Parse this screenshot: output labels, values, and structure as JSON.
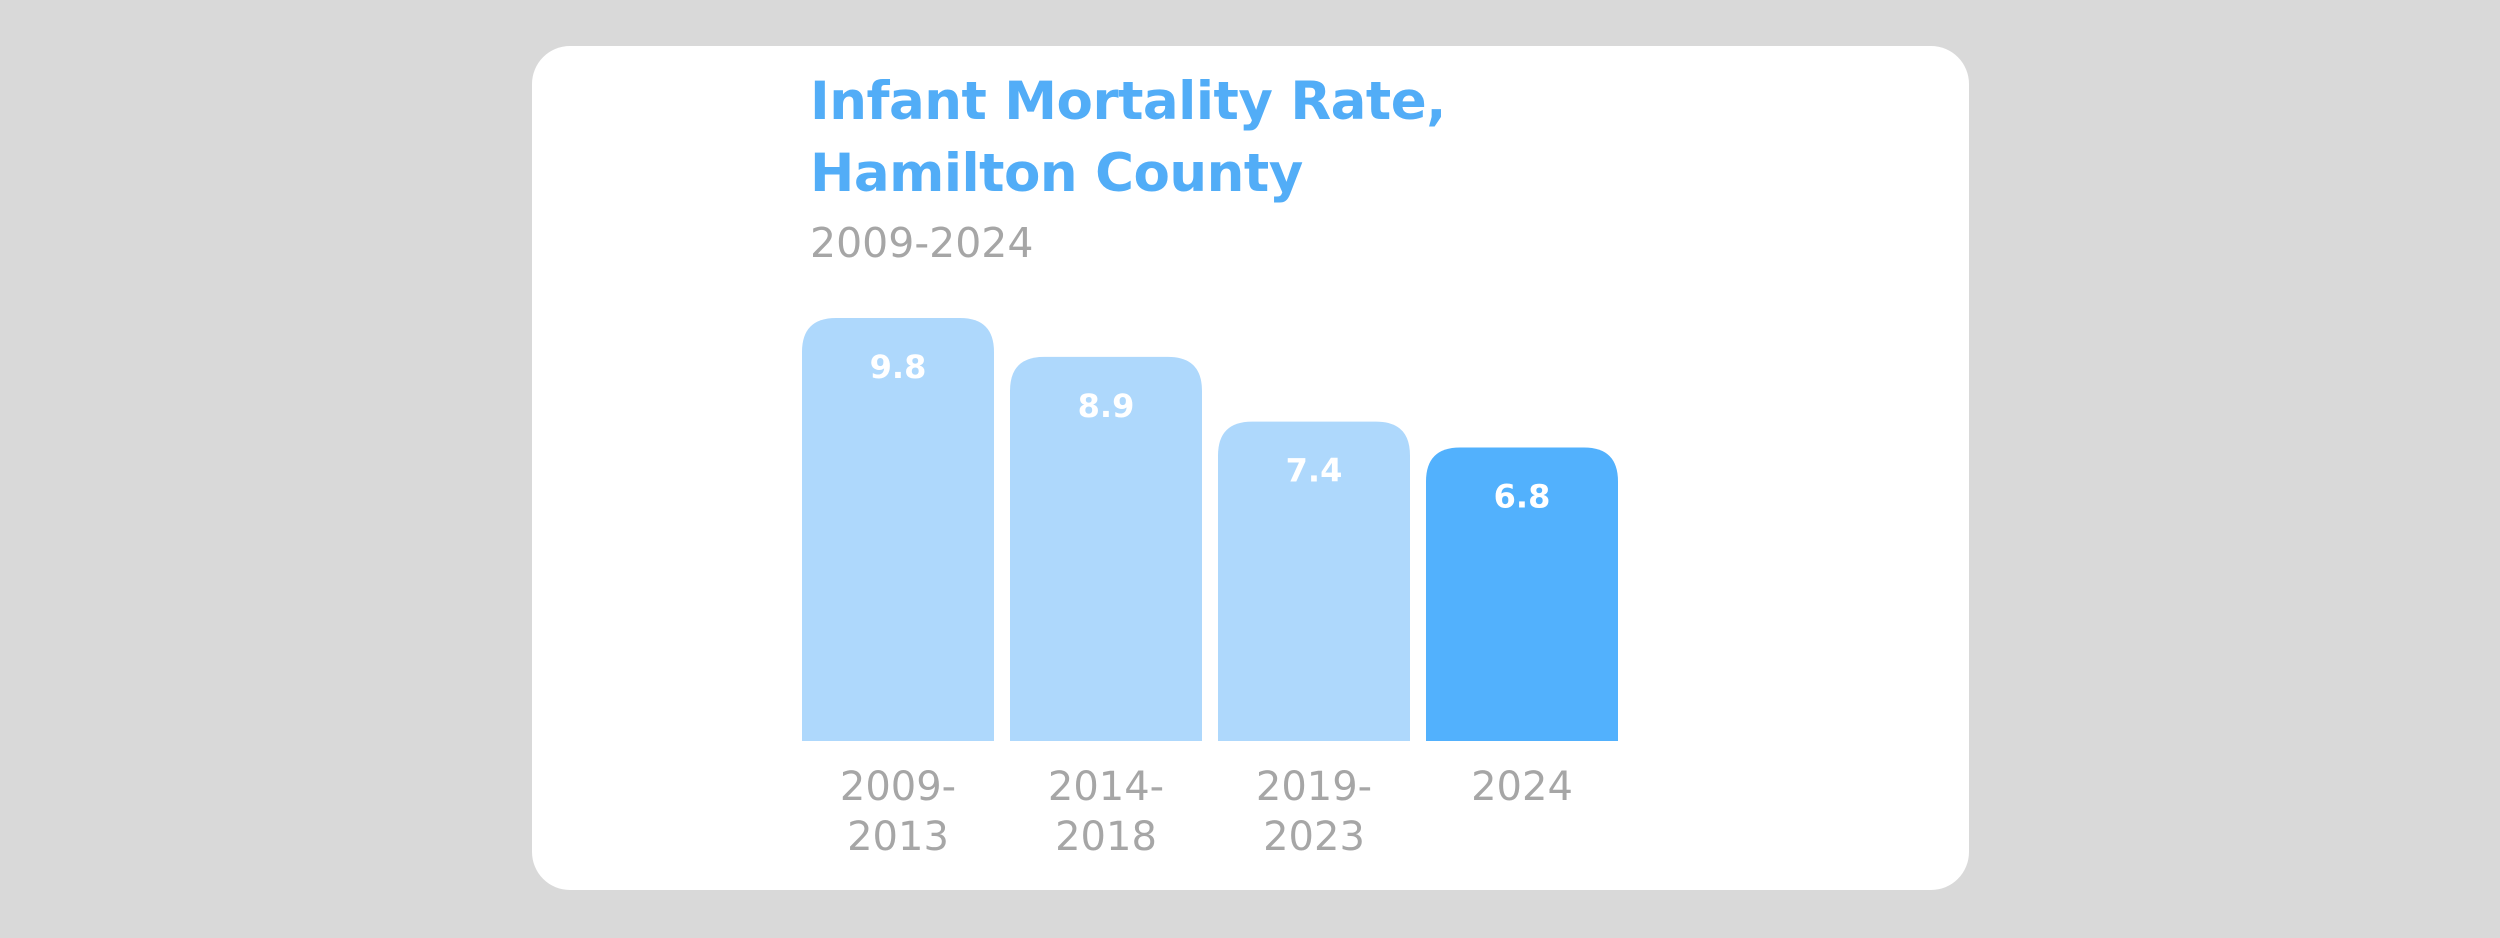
{
  "chart_data": {
    "type": "bar",
    "title": "Infant Mortality Rate, Hamilton County",
    "subtitle": "2009-2024",
    "categories": [
      "2009-2013",
      "2014-2018",
      "2019-2023",
      "2024"
    ],
    "category_label_lines": [
      [
        "2009-",
        "2013"
      ],
      [
        "2014-",
        "2018"
      ],
      [
        "2019-",
        "2023"
      ],
      [
        "2024"
      ]
    ],
    "values": [
      9.8,
      8.9,
      7.4,
      6.8
    ],
    "value_labels": [
      "9.8",
      "8.9",
      "7.4",
      "6.8"
    ],
    "highlight_index": 3,
    "ylim": [
      0,
      9.8
    ],
    "grid": false,
    "colors": {
      "bar": "#aed8fc",
      "highlight": "#52b1fd",
      "title": "#52adf7",
      "label": "#a6a6a6"
    }
  }
}
